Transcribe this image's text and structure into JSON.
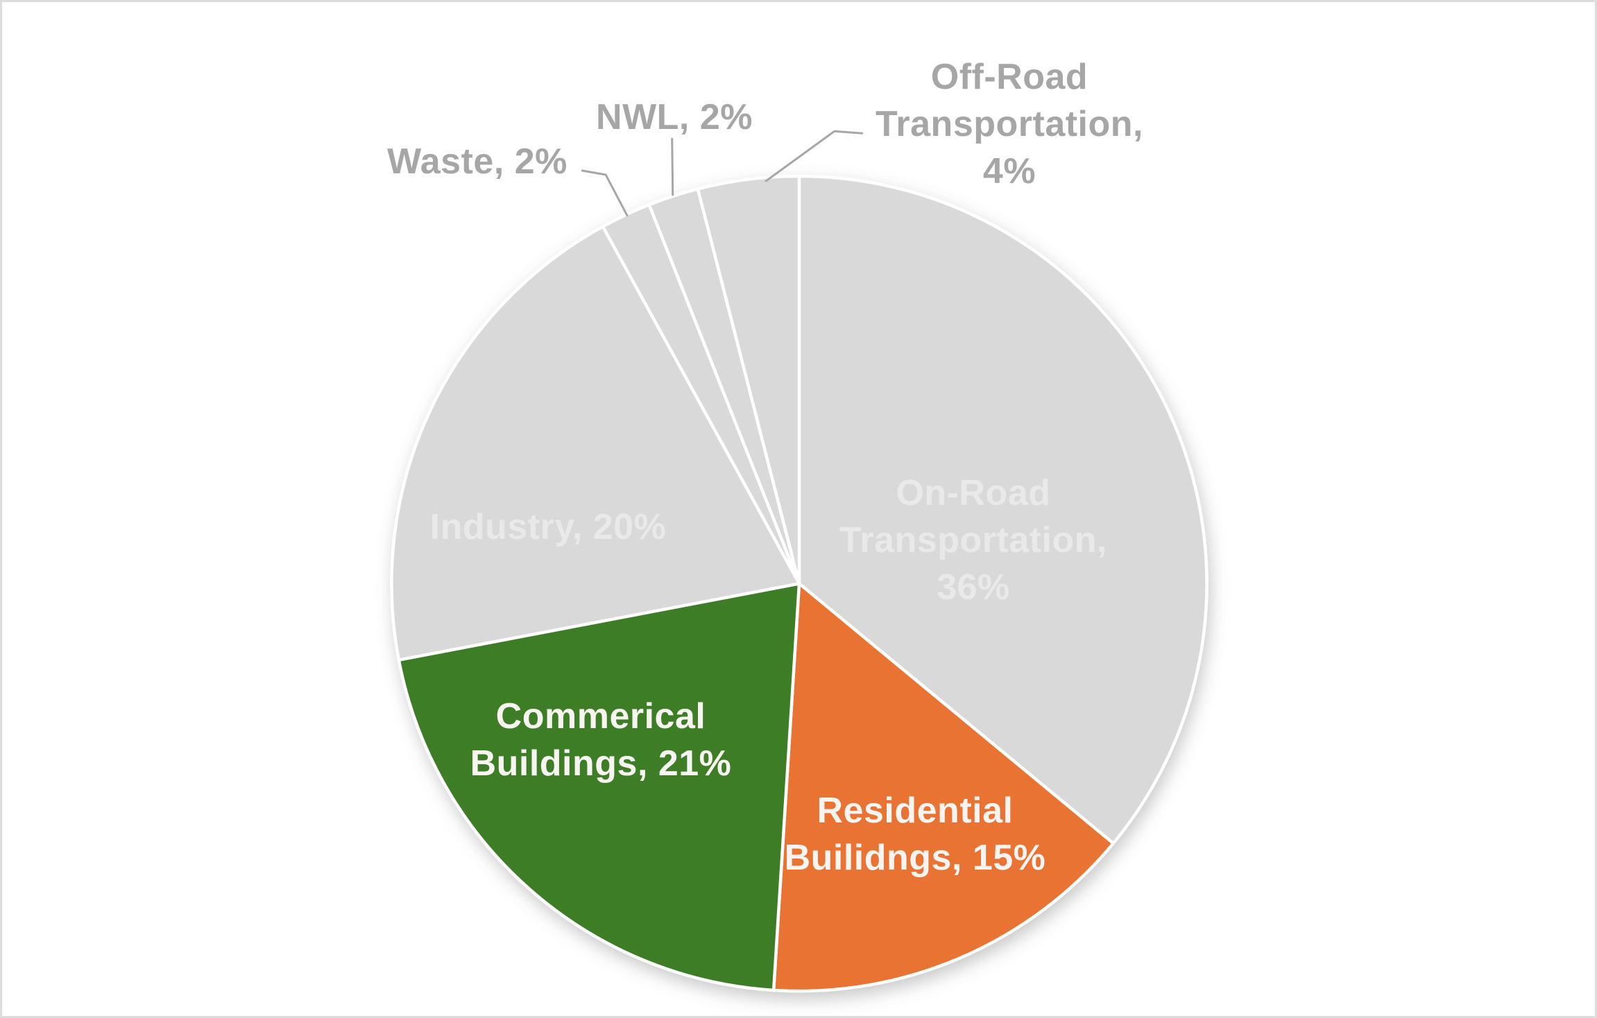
{
  "chart_data": {
    "type": "pie",
    "title": "",
    "unit": "percent",
    "total": 100,
    "start_angle_deg": 0,
    "direction": "clockwise",
    "legend_position": "none",
    "grid": false,
    "slices": [
      {
        "label": "On-Road Transportation",
        "value": 36,
        "color": "#D9D9D9",
        "label_color": "#E9E9E9",
        "label_position": "inside",
        "display": "On-Road\nTransportation,\n36%"
      },
      {
        "label": "Residential Builidngs",
        "value": 15,
        "color": "#E87331",
        "label_color": "#F7F4F1",
        "label_position": "inside",
        "display": "Residential\nBuilidngs, 15%"
      },
      {
        "label": "Commerical Buildings",
        "value": 21,
        "color": "#3C7D26",
        "label_color": "#F7F4F1",
        "label_position": "inside",
        "display": "Commerical\nBuildings, 21%"
      },
      {
        "label": "Industry",
        "value": 20,
        "color": "#D9D9D9",
        "label_color": "#E9E9E9",
        "label_position": "inside",
        "display": "Industry, 20%"
      },
      {
        "label": "Waste",
        "value": 2,
        "color": "#D9D9D9",
        "label_color": "#A6A6A6",
        "label_position": "outside",
        "display": "Waste, 2%"
      },
      {
        "label": "NWL",
        "value": 2,
        "color": "#D9D9D9",
        "label_color": "#A6A6A6",
        "label_position": "outside",
        "display": "NWL, 2%"
      },
      {
        "label": "Off-Road Transportation",
        "value": 4,
        "color": "#D9D9D9",
        "label_color": "#A6A6A6",
        "label_position": "outside",
        "display": "Off-Road\nTransportation,\n4%"
      }
    ],
    "style_colors": {
      "slice_border": "#FFFFFF",
      "gray_slice": "#D9D9D9",
      "green_slice": "#3C7D26",
      "orange_slice": "#E87331",
      "outside_label": "#A6A6A6",
      "inside_gray_label": "#E9E9E9",
      "white_label": "#F7F4F1",
      "leader_line": "#A6A6A6",
      "page_border": "#DCDCDC"
    }
  }
}
